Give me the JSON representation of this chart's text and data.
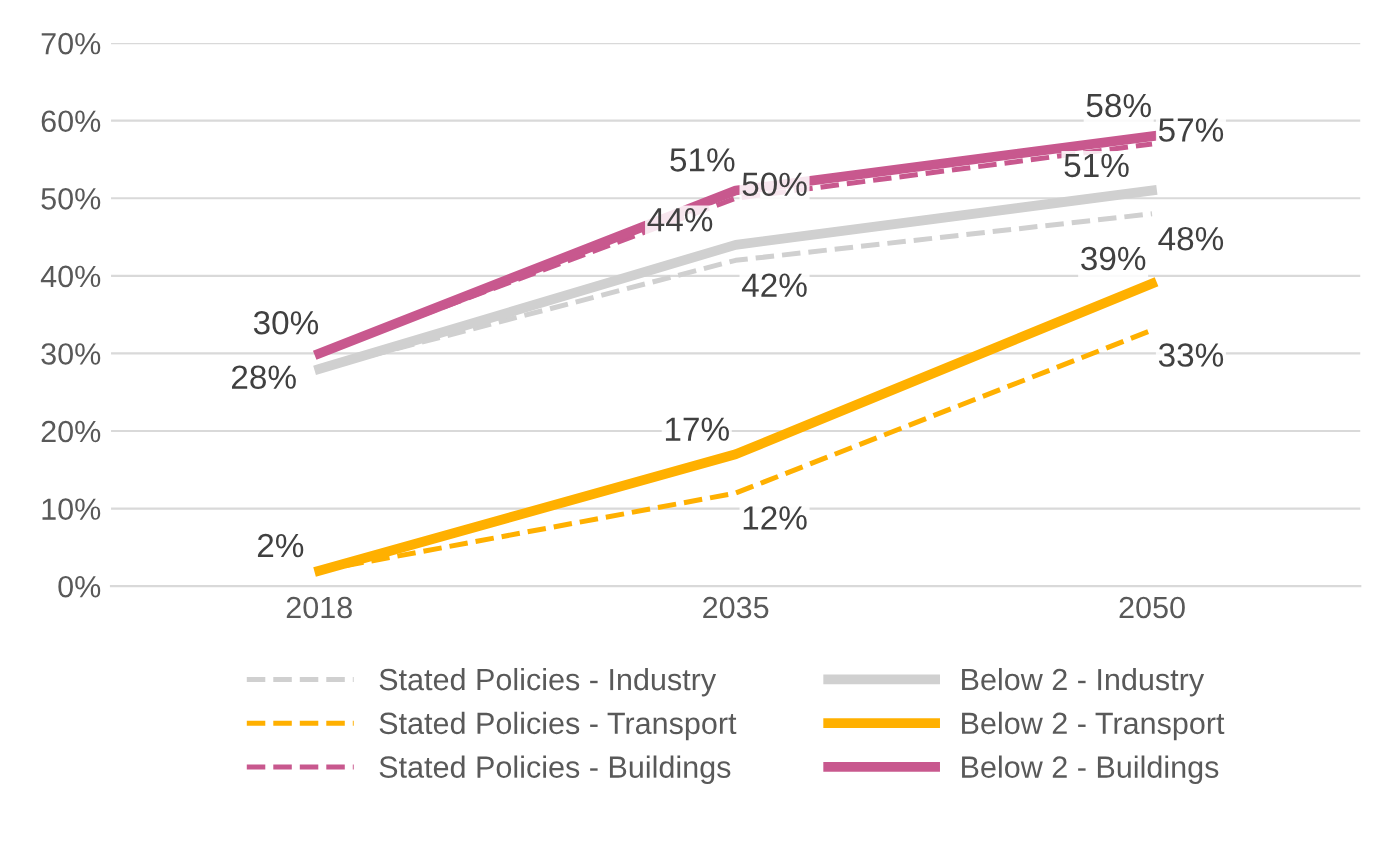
{
  "chart_data": {
    "type": "line",
    "categories": [
      "2018",
      "2035",
      "2050"
    ],
    "ylim": [
      0,
      0.7
    ],
    "yticks": [
      {
        "value": 0,
        "label": "0%"
      },
      {
        "value": 0.1,
        "label": "10%"
      },
      {
        "value": 0.2,
        "label": "20%"
      },
      {
        "value": 0.3,
        "label": "30%"
      },
      {
        "value": 0.4,
        "label": "40%"
      },
      {
        "value": 0.5,
        "label": "50%"
      },
      {
        "value": 0.6,
        "label": "60%"
      },
      {
        "value": 0.7,
        "label": "70%"
      }
    ],
    "grid": "y",
    "legend": "bottom",
    "marker": "none",
    "series": [
      {
        "name": "Stated Policies - Industry",
        "color": "#d0d0d0",
        "line_style": "dashed",
        "values": [
          0.28,
          0.42,
          0.48
        ],
        "value_labels": [
          null,
          "42%",
          "48%"
        ]
      },
      {
        "name": "Stated Policies - Transport",
        "color": "#ffb000",
        "line_style": "dashed",
        "values": [
          0.02,
          0.12,
          0.33
        ],
        "value_labels": [
          null,
          "12%",
          "33%"
        ]
      },
      {
        "name": "Stated Policies - Buildings",
        "color": "#c8588e",
        "line_style": "dashed",
        "values": [
          0.3,
          0.5,
          0.57
        ],
        "value_labels": [
          null,
          "50%",
          "57%"
        ]
      },
      {
        "name": "Below 2 - Industry",
        "color": "#d0d0d0",
        "line_style": "solid",
        "values": [
          0.28,
          0.44,
          0.51
        ],
        "value_labels": [
          "28%",
          "44%",
          "51%"
        ]
      },
      {
        "name": "Below 2 - Transport",
        "color": "#ffb000",
        "line_style": "solid",
        "values": [
          0.02,
          0.17,
          0.39
        ],
        "value_labels": [
          "2%",
          "17%",
          "39%"
        ]
      },
      {
        "name": "Below 2 - Buildings",
        "color": "#c8588e",
        "line_style": "solid",
        "values": [
          0.3,
          0.51,
          0.58
        ],
        "value_labels": [
          "30%",
          "51%",
          "58%"
        ]
      }
    ]
  }
}
